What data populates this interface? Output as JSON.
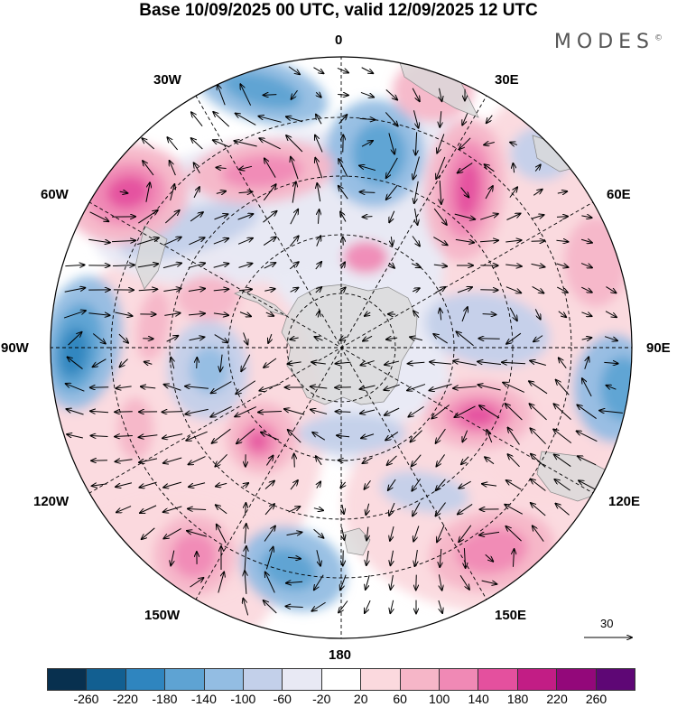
{
  "title": "Base 10/09/2025 00 UTC, valid 12/09/2025 12 UTC",
  "brand": {
    "text": "MODES",
    "mark": "©"
  },
  "map": {
    "projection": "south-polar-stereographic",
    "meridian_labels": {
      "m0": "0",
      "m30e": "30E",
      "m60e": "60E",
      "m90e": "90E",
      "m120e": "120E",
      "m150e": "150E",
      "m180": "180",
      "m150w": "150W",
      "m120w": "120W",
      "m90w": "90W",
      "m60w": "60W",
      "m30w": "30W"
    }
  },
  "vector_scale": {
    "label": "30",
    "icon": "arrow-right-icon"
  },
  "colorbar": {
    "colors": [
      "#08304f",
      "#125f91",
      "#2f85bf",
      "#5ea3d3",
      "#93bde3",
      "#c3d0ea",
      "#e8e9f4",
      "#ffffff",
      "#fbd9de",
      "#f6b6c8",
      "#f089b5",
      "#e4509e",
      "#c21d85",
      "#93087a",
      "#5e0775"
    ],
    "ticks": [
      "-260",
      "-220",
      "-180",
      "-140",
      "-100",
      "-60",
      "-20",
      "20",
      "60",
      "100",
      "140",
      "180",
      "220",
      "260"
    ]
  },
  "field_colors": {
    "blue_strong": "#2f85bf",
    "blue_mid": "#5ea3d3",
    "blue_light": "#93bde3",
    "blue_pale": "#c3d0ea",
    "blue_faint": "#e8e9f4",
    "pink_faint": "#fbd9de",
    "pink_light": "#f6b6c8",
    "pink_mid": "#f089b5",
    "pink_strong": "#e4509e",
    "land": "#d9d9d9"
  }
}
